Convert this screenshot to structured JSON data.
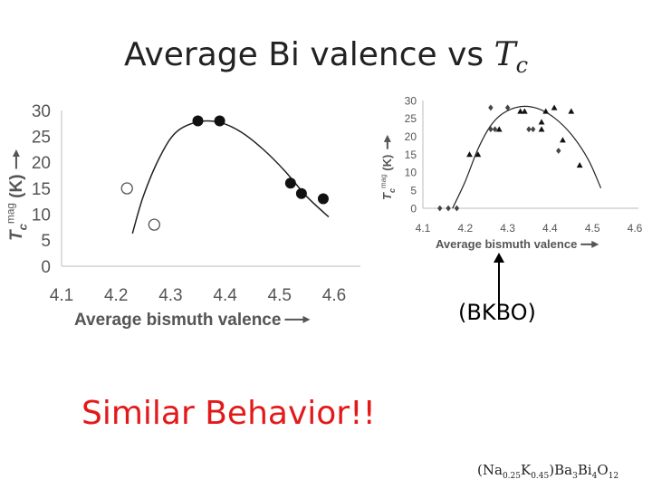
{
  "slide": {
    "title": "Average Bi valence vs ",
    "title_math": "T",
    "title_math_sub": "c",
    "arrow_caption": "(BKBO)",
    "highlight": "Similar Behavior!!",
    "highlight_color": "#e31919",
    "formula": {
      "open": "(",
      "na": "Na",
      "na_sub": "0.25",
      "k": "K",
      "k_sub": "0.45",
      "close": ")Ba",
      "ba_sub": "3",
      "bi": "Bi",
      "bi_sub": "4",
      "o": "O",
      "o_sub": "12"
    }
  },
  "chart_data": [
    {
      "type": "scatter",
      "title": "",
      "xlabel": "Average bismuth valence",
      "ylabel_main": "T",
      "ylabel_sub": "c",
      "ylabel_sup": "mag",
      "ylabel_unit": "(K)",
      "xlim": [
        4.1,
        4.6
      ],
      "ylim": [
        0,
        30
      ],
      "xticks": [
        "4.1",
        "4.2",
        "4.3",
        "4.4",
        "4.5",
        "4.6"
      ],
      "yticks": [
        "0",
        "5",
        "10",
        "15",
        "20",
        "25",
        "30"
      ],
      "series": [
        {
          "name": "filled",
          "marker": "filled-circle",
          "points": [
            [
              4.35,
              28
            ],
            [
              4.39,
              28
            ],
            [
              4.52,
              16
            ],
            [
              4.54,
              14
            ],
            [
              4.58,
              13
            ]
          ]
        },
        {
          "name": "open",
          "marker": "open-circle",
          "points": [
            [
              4.22,
              15
            ],
            [
              4.27,
              8
            ]
          ]
        }
      ],
      "fit_curve": [
        [
          4.23,
          6.3
        ],
        [
          4.25,
          13.5
        ],
        [
          4.28,
          21
        ],
        [
          4.31,
          25.8
        ],
        [
          4.35,
          27.8
        ],
        [
          4.39,
          27.7
        ],
        [
          4.43,
          25.8
        ],
        [
          4.47,
          22.5
        ],
        [
          4.51,
          18.3
        ],
        [
          4.55,
          13.4
        ],
        [
          4.59,
          9.5
        ]
      ]
    },
    {
      "type": "scatter",
      "title": "",
      "xlabel": "Average bismuth valence",
      "ylabel_main": "T",
      "ylabel_sub": "c",
      "ylabel_sup": "mag",
      "ylabel_unit": "(K)",
      "xlim": [
        4.1,
        4.6
      ],
      "ylim": [
        0,
        30
      ],
      "xticks": [
        "4.1",
        "4.2",
        "4.3",
        "4.4",
        "4.5",
        "4.6"
      ],
      "yticks": [
        "0",
        "5",
        "10",
        "15",
        "20",
        "25",
        "30"
      ],
      "series": [
        {
          "name": "diamonds",
          "marker": "diamond",
          "points": [
            [
              4.14,
              0
            ],
            [
              4.16,
              0
            ],
            [
              4.18,
              0
            ],
            [
              4.26,
              22
            ],
            [
              4.27,
              22
            ],
            [
              4.26,
              28
            ],
            [
              4.3,
              28
            ],
            [
              4.35,
              22
            ],
            [
              4.36,
              22
            ],
            [
              4.42,
              16
            ]
          ]
        },
        {
          "name": "triangles",
          "marker": "triangle",
          "points": [
            [
              4.21,
              15
            ],
            [
              4.23,
              15
            ],
            [
              4.28,
              22
            ],
            [
              4.33,
              27
            ],
            [
              4.34,
              27
            ],
            [
              4.38,
              24
            ],
            [
              4.39,
              27
            ],
            [
              4.38,
              22
            ],
            [
              4.41,
              28
            ],
            [
              4.43,
              19
            ],
            [
              4.45,
              27
            ],
            [
              4.47,
              12
            ]
          ]
        }
      ],
      "fit_curve": [
        [
          4.17,
          0
        ],
        [
          4.2,
          7.5
        ],
        [
          4.23,
          16.5
        ],
        [
          4.26,
          23
        ],
        [
          4.29,
          26.5
        ],
        [
          4.33,
          28.3
        ],
        [
          4.37,
          27.8
        ],
        [
          4.41,
          25.2
        ],
        [
          4.45,
          20.6
        ],
        [
          4.49,
          13.6
        ],
        [
          4.52,
          5.6
        ]
      ]
    }
  ]
}
